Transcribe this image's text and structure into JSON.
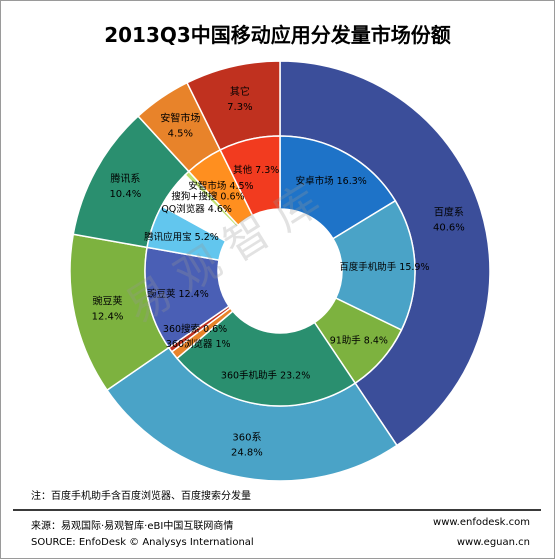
{
  "title": "2013Q3中国移动应用分发量市场份额",
  "watermark": "易观智库",
  "note": "注：百度手机助手含百度浏览器、百度搜索分发量",
  "source_cn": "来源：易观国际·易观智库·eBI中国互联网商情",
  "source_en": "SOURCE: EnfoDesk © Analysys International",
  "url_enfodesk": "www.enfodesk.com",
  "url_eguan": "www.eguan.cn",
  "chart_data": {
    "type": "pie",
    "variant": "nested-donut",
    "title": "2013Q3中国移动应用分发量市场份额",
    "unit": "%",
    "outer": [
      {
        "name": "百度系",
        "value": 40.6,
        "color": "#3b4e9a"
      },
      {
        "name": "360系",
        "value": 24.8,
        "color": "#4aa3c7"
      },
      {
        "name": "豌豆荚",
        "value": 12.4,
        "color": "#7db23f"
      },
      {
        "name": "腾讯系",
        "value": 10.4,
        "color": "#2a8f6f"
      },
      {
        "name": "安智市场",
        "value": 4.5,
        "color": "#e8832a"
      },
      {
        "name": "其它",
        "value": 7.3,
        "color": "#c0311f"
      }
    ],
    "inner": [
      {
        "name": "安卓市场",
        "value": 16.3,
        "color": "#1e73c8"
      },
      {
        "name": "百度手机助手",
        "value": 15.9,
        "color": "#4aa3c7"
      },
      {
        "name": "91助手",
        "value": 8.4,
        "color": "#7db23f"
      },
      {
        "name": "360手机助手",
        "value": 23.2,
        "color": "#2a8f6f"
      },
      {
        "name": "360浏览器",
        "value": 1.0,
        "color": "#e8832a"
      },
      {
        "name": "360搜索",
        "value": 0.6,
        "color": "#c0311f"
      },
      {
        "name": "豌豆荚",
        "value": 12.4,
        "color": "#4a5fb5"
      },
      {
        "name": "腾讯应用宝",
        "value": 5.2,
        "color": "#62c6ee"
      },
      {
        "name": "QQ浏览器",
        "value": 4.6,
        "color": "#ffffff"
      },
      {
        "name": "搜狗+搜搜",
        "value": 0.6,
        "color": "#bfe070"
      },
      {
        "name": "安智市场",
        "value": 4.5,
        "color": "#ff8f1f"
      },
      {
        "name": "其他",
        "value": 7.3,
        "color": "#f23b1f"
      }
    ]
  }
}
